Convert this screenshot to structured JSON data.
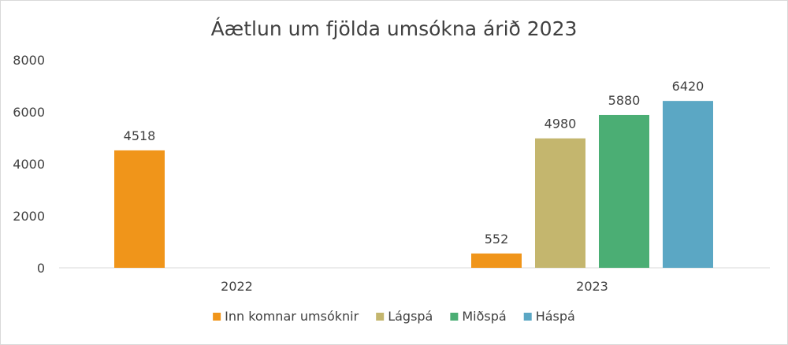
{
  "chart_data": {
    "type": "bar",
    "title": "Áætlun um fjölda umsókna árið 2023",
    "xlabel": "",
    "ylabel": "",
    "ylim": [
      0,
      8000
    ],
    "yticks": [
      0,
      2000,
      4000,
      6000,
      8000
    ],
    "grid": false,
    "legend_position": "bottom",
    "categories": [
      "2022",
      "2023"
    ],
    "series": [
      {
        "name": "Inn komnar umsóknir",
        "color": "#F0951A",
        "values": [
          4518,
          552
        ]
      },
      {
        "name": "Lágspá",
        "color": "#C4B66E",
        "values": [
          null,
          4980
        ]
      },
      {
        "name": "Miðspá",
        "color": "#4BAE74",
        "values": [
          null,
          5880
        ]
      },
      {
        "name": "Háspá",
        "color": "#5BA7C4",
        "values": [
          null,
          6420
        ]
      }
    ]
  }
}
